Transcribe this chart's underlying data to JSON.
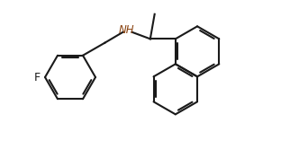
{
  "bg": "#ffffff",
  "lc": "#1a1a1a",
  "nh_color": "#8B4513",
  "lw": 1.5,
  "figsize": [
    3.22,
    1.86
  ],
  "dpi": 100,
  "f_label": "F",
  "nh_label": "NH"
}
